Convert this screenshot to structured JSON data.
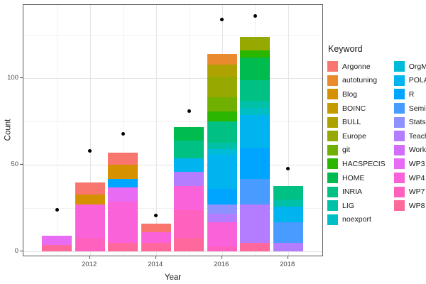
{
  "chart_data": {
    "type": "bar",
    "stacked": true,
    "title": "",
    "xlabel": "Year",
    "ylabel": "Count",
    "legend_title": "Keyword",
    "x_tick_labels": [
      "2012",
      "2014",
      "2016",
      "2018"
    ],
    "x_tick_years": [
      2012,
      2014,
      2016,
      2018
    ],
    "y_tick_labels": [
      "0",
      "50",
      "100"
    ],
    "y_ticks": [
      0,
      50,
      100
    ],
    "y_minor_gridlines": [
      25,
      75,
      125
    ],
    "x_minor_years": [
      2011,
      2013,
      2015,
      2017
    ],
    "ylim": [
      -7,
      143
    ],
    "years": [
      2011,
      2012,
      2013,
      2014,
      2015,
      2016,
      2017,
      2018
    ],
    "legend_position": "right",
    "legend_columns": 2,
    "keywords": [
      {
        "name": "Argonne",
        "color": "#F8766D"
      },
      {
        "name": "autotuning",
        "color": "#E98A2E"
      },
      {
        "name": "Blog",
        "color": "#D59100"
      },
      {
        "name": "BOINC",
        "color": "#C39B00"
      },
      {
        "name": "BULL",
        "color": "#AEA200"
      },
      {
        "name": "Europe",
        "color": "#95A900"
      },
      {
        "name": "git",
        "color": "#6FB000"
      },
      {
        "name": "HACSPECIS",
        "color": "#2BB600"
      },
      {
        "name": "HOME",
        "color": "#00BB4E"
      },
      {
        "name": "INRIA",
        "color": "#00C084"
      },
      {
        "name": "LIG",
        "color": "#00C1A7"
      },
      {
        "name": "noexport",
        "color": "#00BFC4"
      },
      {
        "name": "OrgMode",
        "color": "#00BCD8"
      },
      {
        "name": "POLARIS",
        "color": "#00B4EF"
      },
      {
        "name": "R",
        "color": "#00A5FF"
      },
      {
        "name": "Seminar",
        "color": "#489BFF"
      },
      {
        "name": "Stats",
        "color": "#8E92FF"
      },
      {
        "name": "Teaching",
        "color": "#B47CFF"
      },
      {
        "name": "Workload",
        "color": "#D26DF9"
      },
      {
        "name": "WP3",
        "color": "#E76BF3"
      },
      {
        "name": "WP4",
        "color": "#FA62D9"
      },
      {
        "name": "WP7",
        "color": "#FF61BE"
      },
      {
        "name": "WP8",
        "color": "#FF689C"
      }
    ],
    "stack_note": "segments listed bottom-to-top (reverse alphabetical keyword order)",
    "bars": [
      {
        "year": 2011,
        "total": 9,
        "segments": [
          {
            "keyword": "WP8",
            "value": 4
          },
          {
            "keyword": "WP3",
            "value": 5
          }
        ]
      },
      {
        "year": 2012,
        "total": 40,
        "segments": [
          {
            "keyword": "WP7",
            "value": 8
          },
          {
            "keyword": "WP4",
            "value": 19
          },
          {
            "keyword": "Blog",
            "value": 6
          },
          {
            "keyword": "Argonne",
            "value": 7
          }
        ]
      },
      {
        "year": 2013,
        "total": 57,
        "segments": [
          {
            "keyword": "WP8",
            "value": 5
          },
          {
            "keyword": "WP4",
            "value": 24
          },
          {
            "keyword": "WP3",
            "value": 8
          },
          {
            "keyword": "R",
            "value": 5
          },
          {
            "keyword": "Blog",
            "value": 8
          },
          {
            "keyword": "Argonne",
            "value": 7
          }
        ]
      },
      {
        "year": 2014,
        "total": 16,
        "segments": [
          {
            "keyword": "WP8",
            "value": 5
          },
          {
            "keyword": "WP4",
            "value": 6
          },
          {
            "keyword": "Argonne",
            "value": 5
          }
        ]
      },
      {
        "year": 2015,
        "total": 72,
        "segments": [
          {
            "keyword": "WP8",
            "value": 8
          },
          {
            "keyword": "WP7",
            "value": 16
          },
          {
            "keyword": "WP4",
            "value": 14
          },
          {
            "keyword": "Teaching",
            "value": 8
          },
          {
            "keyword": "POLARIS",
            "value": 8
          },
          {
            "keyword": "INRIA",
            "value": 10
          },
          {
            "keyword": "HOME",
            "value": 8
          }
        ]
      },
      {
        "year": 2016,
        "total": 114,
        "segments": [
          {
            "keyword": "WP7",
            "value": 3
          },
          {
            "keyword": "WP4",
            "value": 14
          },
          {
            "keyword": "Teaching",
            "value": 5
          },
          {
            "keyword": "Stats",
            "value": 5
          },
          {
            "keyword": "R",
            "value": 9
          },
          {
            "keyword": "POLARIS",
            "value": 20
          },
          {
            "keyword": "OrgMode",
            "value": 3
          },
          {
            "keyword": "LIG",
            "value": 4
          },
          {
            "keyword": "INRIA",
            "value": 12
          },
          {
            "keyword": "HACSPECIS",
            "value": 6
          },
          {
            "keyword": "git",
            "value": 8
          },
          {
            "keyword": "Europe",
            "value": 12
          },
          {
            "keyword": "BULL",
            "value": 7
          },
          {
            "keyword": "autotuning",
            "value": 6
          }
        ]
      },
      {
        "year": 2017,
        "total": 124,
        "segments": [
          {
            "keyword": "WP8",
            "value": 5
          },
          {
            "keyword": "Teaching",
            "value": 22
          },
          {
            "keyword": "Seminar",
            "value": 15
          },
          {
            "keyword": "R",
            "value": 18
          },
          {
            "keyword": "POLARIS",
            "value": 19
          },
          {
            "keyword": "noexport",
            "value": 4
          },
          {
            "keyword": "LIG",
            "value": 4
          },
          {
            "keyword": "INRIA",
            "value": 12
          },
          {
            "keyword": "HOME",
            "value": 13
          },
          {
            "keyword": "HACSPECIS",
            "value": 4
          },
          {
            "keyword": "Europe",
            "value": 8
          }
        ]
      },
      {
        "year": 2018,
        "total": 38,
        "segments": [
          {
            "keyword": "Teaching",
            "value": 5
          },
          {
            "keyword": "Seminar",
            "value": 12
          },
          {
            "keyword": "POLARIS",
            "value": 9
          },
          {
            "keyword": "LIG",
            "value": 4
          },
          {
            "keyword": "INRIA",
            "value": 8
          }
        ]
      }
    ],
    "points": [
      {
        "year": 2011,
        "value": 24
      },
      {
        "year": 2012,
        "value": 58
      },
      {
        "year": 2013,
        "value": 68
      },
      {
        "year": 2014,
        "value": 21
      },
      {
        "year": 2015,
        "value": 81
      },
      {
        "year": 2016,
        "value": 134
      },
      {
        "year": 2017,
        "value": 136
      },
      {
        "year": 2018,
        "value": 48
      }
    ]
  }
}
